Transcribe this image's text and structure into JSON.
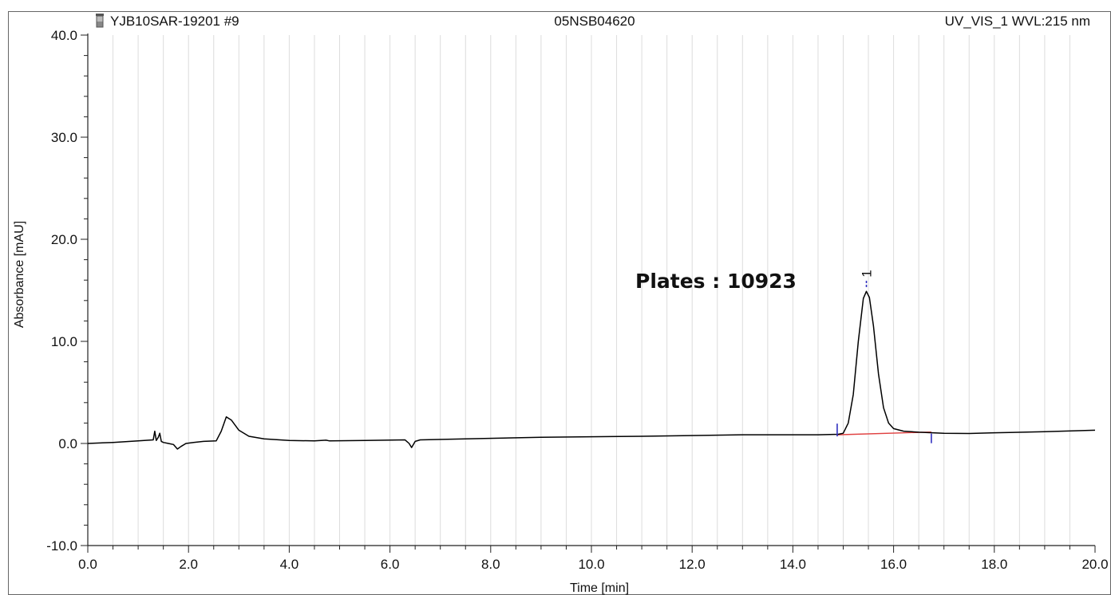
{
  "header": {
    "sample": "YJB10SAR-19201 #9",
    "method": "05NSB04620",
    "channel": "UV_VIS_1 WVL:215 nm"
  },
  "annotation": {
    "text": "Plates : 10923"
  },
  "icons": {
    "vial": "vial-icon"
  },
  "chart_data": {
    "type": "line",
    "xlabel": "Time [min]",
    "ylabel": "Absorbance [mAU]",
    "xlim": [
      0.0,
      20.0
    ],
    "ylim": [
      -10.0,
      40.0
    ],
    "x_ticks": [
      "0.0",
      "2.0",
      "4.0",
      "6.0",
      "8.0",
      "10.0",
      "12.0",
      "14.0",
      "16.0",
      "18.0",
      "20.0"
    ],
    "y_ticks": [
      "-10.0",
      "0.0",
      "10.0",
      "20.0",
      "30.0",
      "40.0"
    ],
    "grid": "vertical",
    "trace_color": "#000000",
    "baseline_color": "#e04040",
    "marker_color": "#3030c0",
    "series": [
      {
        "values": [
          [
            0.0,
            0.0
          ],
          [
            0.5,
            0.1
          ],
          [
            1.0,
            0.25
          ],
          [
            1.3,
            0.35
          ],
          [
            1.33,
            1.2
          ],
          [
            1.36,
            0.3
          ],
          [
            1.4,
            0.6
          ],
          [
            1.43,
            1.0
          ],
          [
            1.46,
            0.2
          ],
          [
            1.5,
            0.1
          ],
          [
            1.6,
            0.0
          ],
          [
            1.7,
            -0.1
          ],
          [
            1.78,
            -0.55
          ],
          [
            1.85,
            -0.3
          ],
          [
            1.95,
            0.0
          ],
          [
            2.1,
            0.1
          ],
          [
            2.3,
            0.2
          ],
          [
            2.55,
            0.25
          ],
          [
            2.65,
            1.2
          ],
          [
            2.75,
            2.6
          ],
          [
            2.85,
            2.3
          ],
          [
            3.0,
            1.3
          ],
          [
            3.2,
            0.7
          ],
          [
            3.5,
            0.45
          ],
          [
            4.0,
            0.3
          ],
          [
            4.5,
            0.25
          ],
          [
            4.73,
            0.32
          ],
          [
            4.8,
            0.25
          ],
          [
            5.5,
            0.3
          ],
          [
            6.3,
            0.35
          ],
          [
            6.38,
            0.0
          ],
          [
            6.43,
            -0.4
          ],
          [
            6.5,
            0.2
          ],
          [
            6.6,
            0.35
          ],
          [
            7.5,
            0.45
          ],
          [
            9.0,
            0.6
          ],
          [
            11.0,
            0.7
          ],
          [
            13.0,
            0.85
          ],
          [
            14.5,
            0.85
          ],
          [
            14.9,
            0.9
          ],
          [
            15.0,
            1.0
          ],
          [
            15.1,
            2.0
          ],
          [
            15.2,
            4.8
          ],
          [
            15.3,
            10.0
          ],
          [
            15.4,
            14.2
          ],
          [
            15.46,
            14.9
          ],
          [
            15.52,
            14.3
          ],
          [
            15.6,
            11.5
          ],
          [
            15.7,
            6.8
          ],
          [
            15.8,
            3.5
          ],
          [
            15.9,
            2.0
          ],
          [
            16.0,
            1.45
          ],
          [
            16.2,
            1.2
          ],
          [
            16.5,
            1.1
          ],
          [
            17.0,
            1.0
          ],
          [
            17.5,
            0.98
          ],
          [
            18.0,
            1.05
          ],
          [
            19.0,
            1.15
          ],
          [
            20.0,
            1.3
          ]
        ]
      }
    ],
    "baseline": [
      [
        14.88,
        0.85
      ],
      [
        16.75,
        1.12
      ]
    ],
    "peak": {
      "label": "1",
      "x": 15.46
    },
    "integration_marks": [
      14.88,
      16.75
    ]
  }
}
